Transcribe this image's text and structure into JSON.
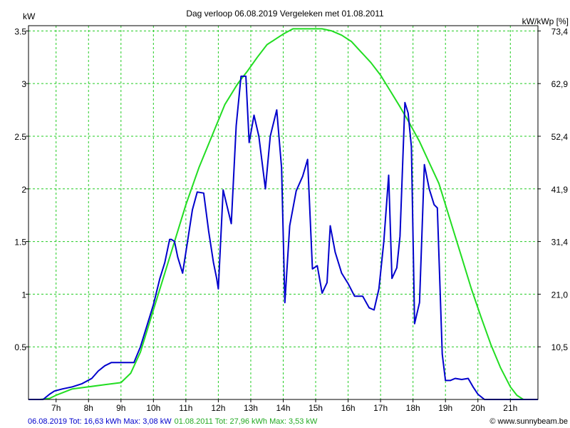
{
  "chart_data": {
    "type": "line",
    "title": "Dag  verloop 06.08.2019   Vergeleken met 01.08.2011",
    "ylabel_left": "kW",
    "ylabel_right": "kW/kWp [%]",
    "ylim": [
      0,
      3.55
    ],
    "xlim": [
      6.15,
      21.85
    ],
    "x_ticks": [
      7,
      8,
      9,
      10,
      11,
      12,
      13,
      14,
      15,
      16,
      17,
      18,
      19,
      20,
      21
    ],
    "x_tick_labels": [
      "7h",
      "8h",
      "9h",
      "10h",
      "11h",
      "12h",
      "13h",
      "14h",
      "15h",
      "16h",
      "17h",
      "18h",
      "19h",
      "20h",
      "21h"
    ],
    "y_ticks_left": [
      0.5,
      1,
      1.5,
      2,
      2.5,
      3,
      3.5
    ],
    "y_tick_labels_left": [
      "0.5",
      "1",
      "1.5",
      "2",
      "2.5",
      "3",
      "3.5"
    ],
    "y_ticks_right": [
      0.5,
      1,
      1.5,
      2,
      2.5,
      3,
      3.5
    ],
    "y_tick_labels_right": [
      "10,5",
      "21,0",
      "31,4",
      "41,9",
      "52,4",
      "62,9",
      "73,4"
    ],
    "grid": true,
    "colors": {
      "series_2019": "#0000cc",
      "series_2011": "#22dd22",
      "grid": "#22cc22",
      "credit": "#000066"
    },
    "footer": {
      "legend_2019": "06.08.2019 Tot: 16,63 kWh Max: 3,08 kW",
      "legend_2011": "01.08.2011 Tot: 27,96 kWh Max: 3,53 kW",
      "credit": "© www.sunnybeam.be"
    },
    "series": [
      {
        "key": "2019",
        "x": [
          6.15,
          6.6,
          6.8,
          6.95,
          7.2,
          7.5,
          7.8,
          8.1,
          8.3,
          8.5,
          8.7,
          8.85,
          9.0,
          9.2,
          9.4,
          9.6,
          9.8,
          10.0,
          10.2,
          10.35,
          10.5,
          10.55,
          10.65,
          10.75,
          10.9,
          11.05,
          11.2,
          11.35,
          11.55,
          11.7,
          11.85,
          11.95,
          12.0,
          12.15,
          12.4,
          12.55,
          12.7,
          12.85,
          12.95,
          13.1,
          13.25,
          13.45,
          13.6,
          13.8,
          13.95,
          14.05,
          14.2,
          14.4,
          14.6,
          14.75,
          14.9,
          15.05,
          15.2,
          15.35,
          15.45,
          15.6,
          15.8,
          16.0,
          16.2,
          16.45,
          16.65,
          16.8,
          16.95,
          17.1,
          17.25,
          17.35,
          17.5,
          17.6,
          17.75,
          17.85,
          17.95,
          18.05,
          18.2,
          18.35,
          18.5,
          18.65,
          18.75,
          18.9,
          19.0,
          19.15,
          19.3,
          19.5,
          19.7,
          19.85,
          20.0,
          20.2,
          20.4,
          20.6,
          20.8,
          21.0,
          21.2,
          21.4,
          21.6,
          21.85
        ],
        "y": [
          0.0,
          0.0,
          0.05,
          0.08,
          0.1,
          0.12,
          0.15,
          0.2,
          0.27,
          0.32,
          0.35,
          0.35,
          0.35,
          0.35,
          0.35,
          0.5,
          0.7,
          0.9,
          1.15,
          1.3,
          1.52,
          1.52,
          1.5,
          1.35,
          1.2,
          1.5,
          1.8,
          1.97,
          1.96,
          1.6,
          1.3,
          1.15,
          1.05,
          1.99,
          1.67,
          2.6,
          3.07,
          3.07,
          2.44,
          2.7,
          2.5,
          2.0,
          2.5,
          2.75,
          2.2,
          0.92,
          1.65,
          1.98,
          2.12,
          2.28,
          1.24,
          1.27,
          1.01,
          1.11,
          1.65,
          1.4,
          1.2,
          1.1,
          0.98,
          0.98,
          0.87,
          0.85,
          1.05,
          1.5,
          2.13,
          1.15,
          1.25,
          1.55,
          2.82,
          2.72,
          2.4,
          0.72,
          0.92,
          2.23,
          2.0,
          1.85,
          1.82,
          0.43,
          0.18,
          0.18,
          0.2,
          0.19,
          0.2,
          0.12,
          0.05,
          0.0,
          0.0,
          0.0,
          0.0,
          0.0,
          0.0,
          0.0,
          0.0,
          0.0
        ]
      },
      {
        "key": "2011",
        "x": [
          6.15,
          6.5,
          6.8,
          7.0,
          7.5,
          8.0,
          8.5,
          9.0,
          9.3,
          9.6,
          9.8,
          10.0,
          10.3,
          10.6,
          11.0,
          11.4,
          11.8,
          12.2,
          12.6,
          12.9,
          13.2,
          13.5,
          13.8,
          14.0,
          14.3,
          14.6,
          14.9,
          15.2,
          15.5,
          15.8,
          16.1,
          16.4,
          16.7,
          17.0,
          17.3,
          17.6,
          17.9,
          18.2,
          18.5,
          18.8,
          19.0,
          19.2,
          19.5,
          19.8,
          20.1,
          20.4,
          20.7,
          21.0,
          21.2,
          21.4,
          21.55,
          21.7,
          21.85
        ],
        "y": [
          0.0,
          0.0,
          0.01,
          0.04,
          0.1,
          0.12,
          0.14,
          0.16,
          0.25,
          0.45,
          0.65,
          0.85,
          1.15,
          1.45,
          1.85,
          2.2,
          2.5,
          2.8,
          3.0,
          3.12,
          3.25,
          3.37,
          3.43,
          3.47,
          3.52,
          3.52,
          3.52,
          3.52,
          3.5,
          3.46,
          3.4,
          3.3,
          3.2,
          3.08,
          2.93,
          2.78,
          2.62,
          2.45,
          2.25,
          2.05,
          1.85,
          1.65,
          1.35,
          1.05,
          0.78,
          0.52,
          0.3,
          0.12,
          0.04,
          0.0,
          0.0,
          0.0,
          0.0
        ]
      }
    ]
  }
}
